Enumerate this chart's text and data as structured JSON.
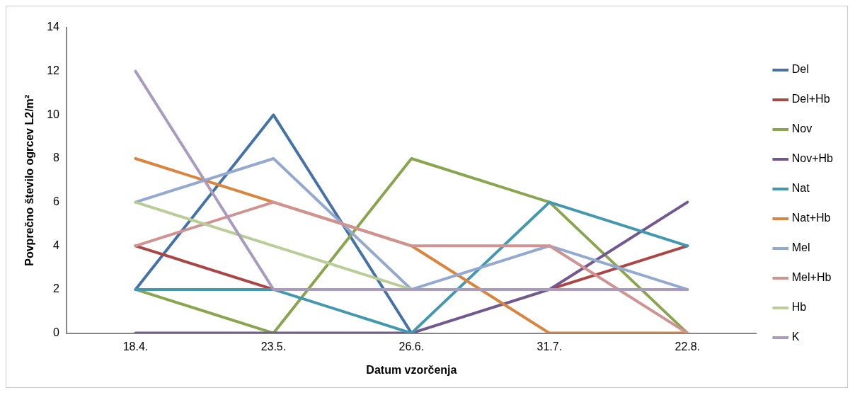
{
  "chart_data": {
    "type": "line",
    "xlabel": "Datum vzorčenja",
    "ylabel": "Povprečno število ogrcev L2/m²",
    "categories": [
      "18.4.",
      "23.5.",
      "26.6.",
      "31.7.",
      "22.8."
    ],
    "ylim": [
      0,
      14
    ],
    "yticks": [
      0,
      2,
      4,
      6,
      8,
      10,
      12,
      14
    ],
    "grid": false,
    "legend": "right",
    "marker": "none",
    "line_style": "solid",
    "series": [
      {
        "name": "Del",
        "color": "#4572a7",
        "values": [
          2,
          10,
          0,
          null,
          null
        ]
      },
      {
        "name": "Del+Hb",
        "color": "#aa4643",
        "values": [
          4,
          2,
          null,
          2,
          4
        ]
      },
      {
        "name": "Nov",
        "color": "#89a54e",
        "values": [
          2,
          0,
          8,
          6,
          0
        ]
      },
      {
        "name": "Nov+Hb",
        "color": "#71588f",
        "values": [
          0,
          0,
          0,
          2,
          6
        ]
      },
      {
        "name": "Nat",
        "color": "#4198af",
        "values": [
          2,
          2,
          0,
          6,
          4
        ]
      },
      {
        "name": "Nat+Hb",
        "color": "#db843d",
        "values": [
          8,
          6,
          4,
          0,
          0
        ]
      },
      {
        "name": "Mel",
        "color": "#93a9cf",
        "values": [
          6,
          8,
          2,
          4,
          2
        ]
      },
      {
        "name": "Mel+Hb",
        "color": "#d19392",
        "values": [
          4,
          6,
          4,
          4,
          0
        ]
      },
      {
        "name": "Hb",
        "color": "#b9cd96",
        "values": [
          6,
          4,
          2,
          null,
          null
        ]
      },
      {
        "name": "K",
        "color": "#a99bbd",
        "values": [
          12,
          2,
          2,
          2,
          2
        ]
      }
    ]
  }
}
